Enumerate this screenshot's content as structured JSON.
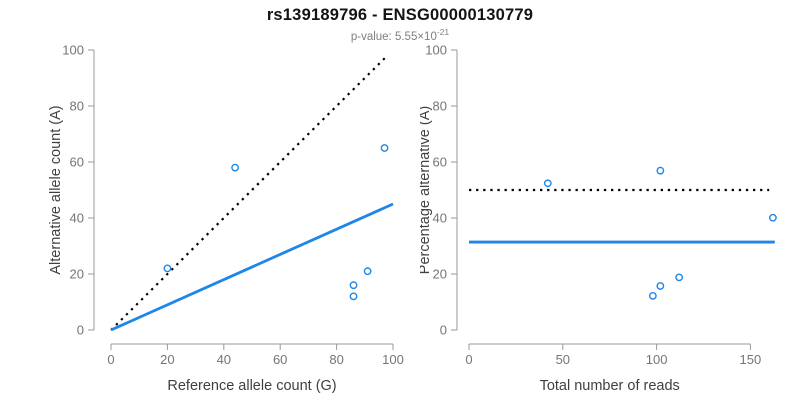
{
  "header": {
    "title": "rs139189796 - ENSG00000130779",
    "pvalue_prefix": "p-value: 5.55×10",
    "pvalue_exponent": "-21"
  },
  "colors": {
    "accent_blue": "#1E86E8",
    "line_black": "#000000",
    "axis_line": "#999999",
    "tick_text": "#757575",
    "axis_title_text": "#404040"
  },
  "chart_data": [
    {
      "type": "scatter",
      "name": "allele-counts-panel",
      "xlabel": "Reference allele count (G)",
      "ylabel": "Alternative allele count (A)",
      "xlim": [
        0,
        100
      ],
      "ylim": [
        0,
        100
      ],
      "xticks": [
        0,
        20,
        40,
        60,
        80,
        100
      ],
      "yticks": [
        0,
        20,
        40,
        60,
        80,
        100
      ],
      "grid": false,
      "points": {
        "x": [
          20,
          44,
          97,
          91,
          86,
          86
        ],
        "y": [
          22,
          58,
          65,
          21,
          16,
          12
        ]
      },
      "lines": [
        {
          "name": "identity-line",
          "style": "dotted",
          "color": "#000000",
          "x1": 0,
          "y1": 0,
          "x2": 97.5,
          "y2": 97.5
        },
        {
          "name": "fit-line",
          "style": "solid",
          "color": "#1E86E8",
          "x1": 0,
          "y1": 0,
          "x2": 100,
          "y2": 45
        }
      ]
    },
    {
      "type": "scatter",
      "name": "percentage-panel",
      "xlabel": "Total number of reads",
      "ylabel": "Percentage alternative (A)",
      "xlim": [
        0,
        165
      ],
      "ylim": [
        0,
        100
      ],
      "xticks": [
        0,
        50,
        100,
        150
      ],
      "yticks": [
        0,
        20,
        40,
        60,
        80,
        100
      ],
      "grid": false,
      "points": {
        "x": [
          42,
          102,
          162,
          112,
          102,
          98
        ],
        "y": [
          52.4,
          56.9,
          40.1,
          18.8,
          15.7,
          12.2
        ]
      },
      "lines": [
        {
          "name": "fifty-percent-line",
          "style": "dotted",
          "color": "#000000",
          "x1": 0,
          "y1": 50,
          "x2": 160,
          "y2": 50
        },
        {
          "name": "mean-percentage-line",
          "style": "solid",
          "color": "#1E86E8",
          "x1": 0,
          "y1": 31.4,
          "x2": 163,
          "y2": 31.4
        }
      ]
    }
  ]
}
